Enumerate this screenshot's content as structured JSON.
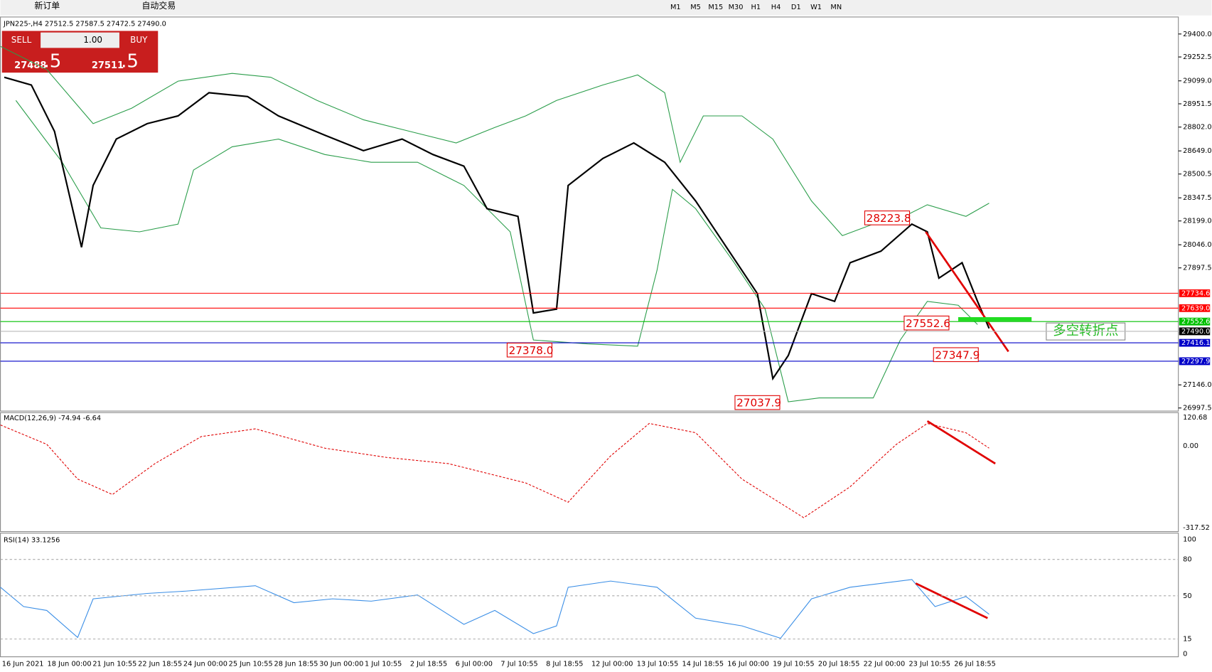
{
  "toolbar": {
    "new_order": "新订单",
    "auto_trade": "自动交易",
    "timeframes": [
      "M1",
      "M5",
      "M15",
      "M30",
      "H1",
      "H4",
      "D1",
      "W1",
      "MN"
    ]
  },
  "chart": {
    "header": "JPN225-,H4 27512.5 27587.5 27472.5 27490.0",
    "trade_panel": {
      "sell": "SELL",
      "buy": "BUY",
      "lots": "1.00",
      "sell_price": "27488",
      "sell_pips": ".5",
      "buy_price": "27511",
      "buy_pips": ".5"
    },
    "price_ticks": [
      {
        "value": 29400,
        "label": "29400.0"
      },
      29252.5,
      {
        "value": 29099,
        "label": "29099.0"
      },
      28951.5,
      {
        "value": 28802,
        "label": "28802.0"
      },
      {
        "value": 28649,
        "label": "28649.0"
      },
      28500.5,
      28347.5,
      {
        "value": 28199,
        "label": "28199.0"
      },
      {
        "value": 28046,
        "label": "28046.0"
      },
      27897.5,
      {
        "value": 27146,
        "label": "27146.0"
      },
      26997.5
    ],
    "levels": [
      {
        "value": 27734.6,
        "color": "#ff0000"
      },
      {
        "value": {
          "value": 27639,
          "label": "27639.0"
        },
        "color": "#ff0000"
      },
      {
        "value": 27552.6,
        "color": "#00c000"
      },
      {
        "value": 27416.1,
        "color": "#0000c8"
      },
      {
        "value": 27297.9,
        "color": "#0000c8"
      }
    ],
    "current_price": {
      "value": 27490,
      "label": "27490.0"
    },
    "annotations": [
      "28223.8",
      "27552.6",
      "27378.0",
      "27347.9",
      "27037.9"
    ],
    "turning_point": "多空转折点",
    "macd": {
      "label": "MACD(12,26,9) -74.94 -6.64",
      "axis": [
        "120.68",
        "0.00",
        "-317.52"
      ]
    },
    "rsi": {
      "label": "RSI(14) 33.1256",
      "axis": [
        "100",
        "80",
        "50",
        "15",
        "0"
      ]
    },
    "time_axis": [
      "16 Jun 2021",
      "18 Jun 00:00",
      "21 Jun 10:55",
      "22 Jun 18:55",
      "24 Jun 00:00",
      "25 Jun 10:55",
      "28 Jun 18:55",
      "30 Jun 00:00",
      "1 Jul 10:55",
      "2 Jul 18:55",
      "6 Jul 00:00",
      "7 Jul 10:55",
      "8 Jul 18:55",
      "12 Jul 00:00",
      "13 Jul 10:55",
      "14 Jul 18:55",
      "16 Jul 00:00",
      "19 Jul 10:55",
      "20 Jul 18:55",
      "22 Jul 00:00",
      "23 Jul 10:55",
      "26 Jul 18:55"
    ]
  }
}
